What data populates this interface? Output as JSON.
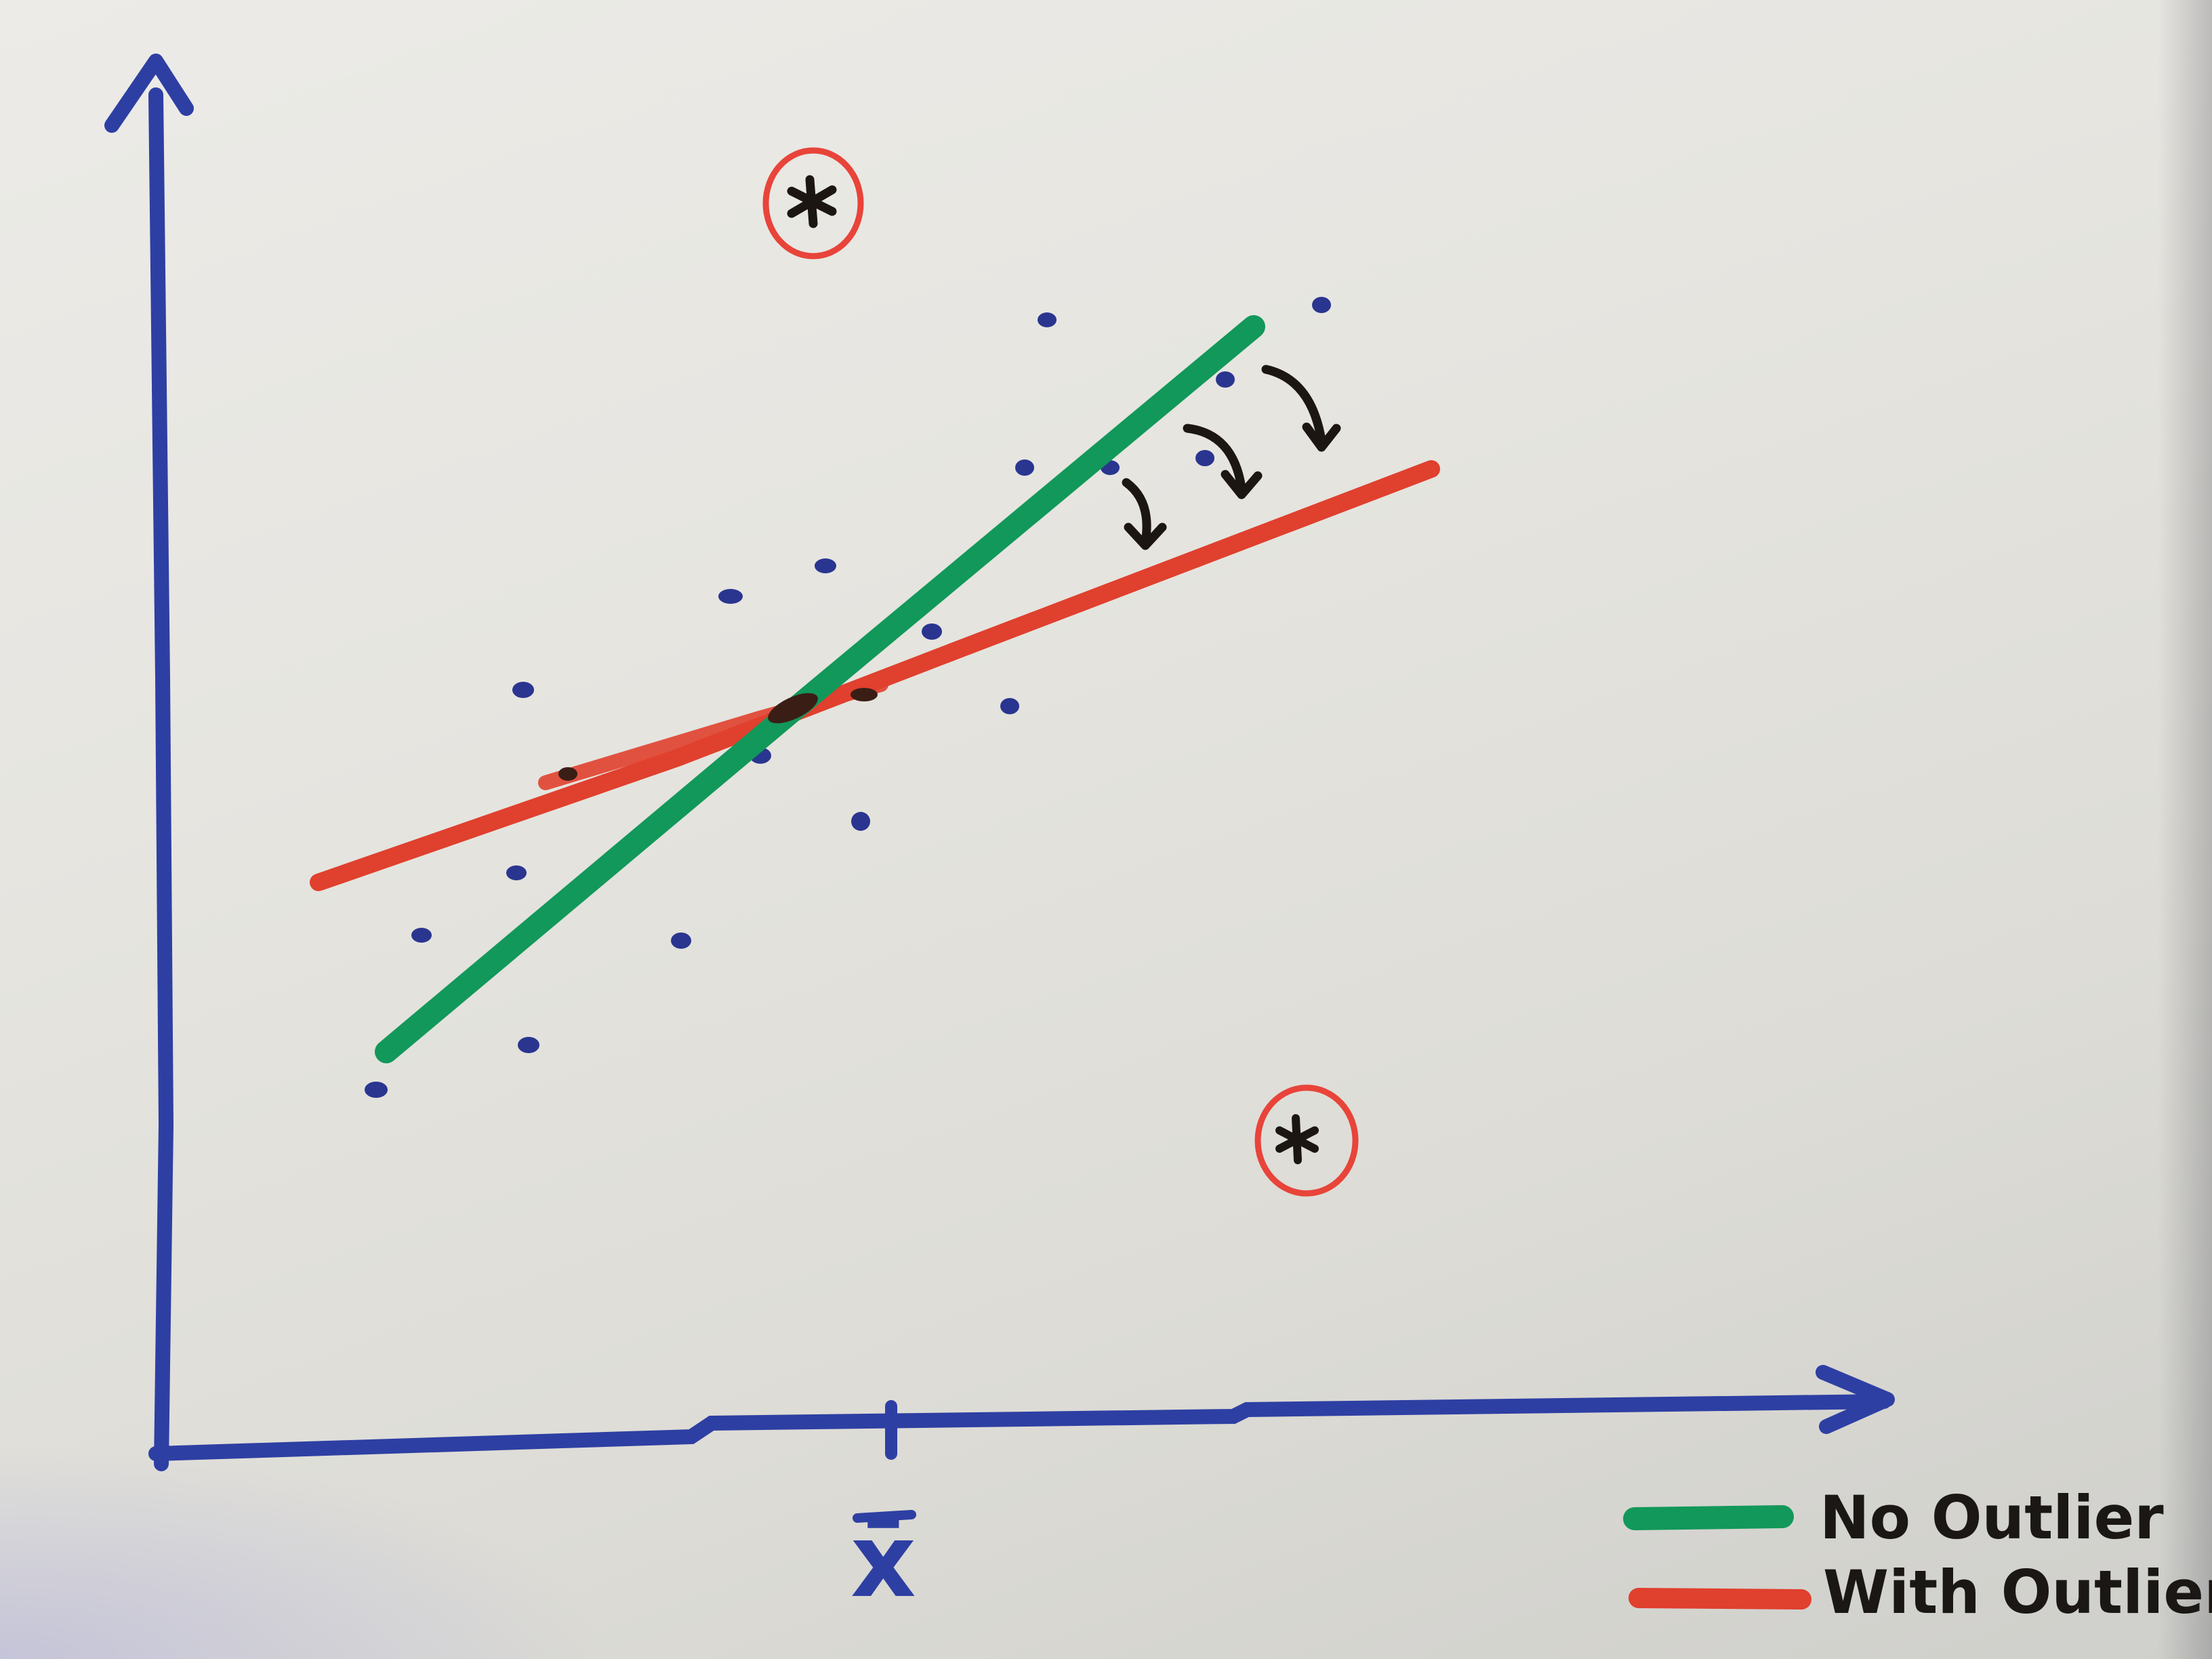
{
  "diagram": {
    "x_label": "x̄",
    "colors": {
      "axes": "#2e3fa3",
      "points": "#2a3590",
      "no_outlier_line": "#12985a",
      "with_outlier_line": "#e0402e",
      "outlier_circle": "#e8443a",
      "arrows": "#1c1612"
    },
    "outliers": [
      {
        "marker": "*"
      },
      {
        "marker": "*"
      }
    ]
  },
  "legend": {
    "items": [
      {
        "label": "No Outlier",
        "color": "#12985a"
      },
      {
        "label": "With Outlier",
        "color": "#e0402e"
      }
    ]
  }
}
